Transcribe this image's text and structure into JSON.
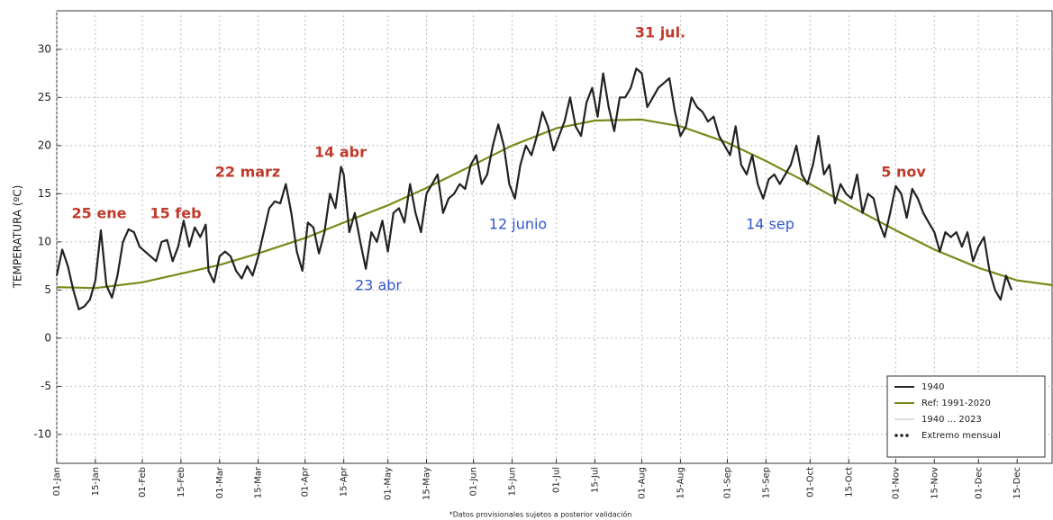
{
  "chart_data": {
    "type": "line",
    "ylabel": "TEMPERATURA (ºC)",
    "footnote": "*Datos provisionales sujetos a posterior validación",
    "xlim": [
      1,
      362
    ],
    "ylim": [
      -13,
      34
    ],
    "yticks": [
      -10,
      -5,
      0,
      5,
      10,
      15,
      20,
      25,
      30
    ],
    "xticks": [
      {
        "value": 1,
        "label": "01-Jan"
      },
      {
        "value": 15,
        "label": "15-Jan"
      },
      {
        "value": 32,
        "label": "01-Feb"
      },
      {
        "value": 46,
        "label": "15-Feb"
      },
      {
        "value": 60,
        "label": "01-Mar"
      },
      {
        "value": 74,
        "label": "15-Mar"
      },
      {
        "value": 91,
        "label": "01-Apr"
      },
      {
        "value": 105,
        "label": "15-Apr"
      },
      {
        "value": 121,
        "label": "01-May"
      },
      {
        "value": 135,
        "label": "15-May"
      },
      {
        "value": 152,
        "label": "01-Jun"
      },
      {
        "value": 166,
        "label": "15-Jun"
      },
      {
        "value": 182,
        "label": "01-Jul"
      },
      {
        "value": 196,
        "label": "15-Jul"
      },
      {
        "value": 213,
        "label": "01-Aug"
      },
      {
        "value": 227,
        "label": "15-Aug"
      },
      {
        "value": 244,
        "label": "01-Sep"
      },
      {
        "value": 258,
        "label": "15-Sep"
      },
      {
        "value": 274,
        "label": "01-Oct"
      },
      {
        "value": 288,
        "label": "15-Oct"
      },
      {
        "value": 305,
        "label": "01-Nov"
      },
      {
        "value": 319,
        "label": "15-Nov"
      },
      {
        "value": 335,
        "label": "01-Dec"
      },
      {
        "value": 349,
        "label": "15-Dec"
      }
    ],
    "grid": true,
    "legend": "lower right",
    "legend_extra": [
      {
        "label": "1940 ... 2023",
        "color": "#bbbbbb"
      },
      {
        "label": "Extremo mensual",
        "color": "#222222"
      }
    ],
    "annotations": [
      {
        "text": "25 ene",
        "color": "#c0392b"
      },
      {
        "text": "15 feb",
        "color": "#c0392b"
      },
      {
        "text": "22 marz",
        "color": "#c0392b"
      },
      {
        "text": "14 abr",
        "color": "#c0392b"
      },
      {
        "text": "23 abr",
        "color": "#3355cc"
      },
      {
        "text": "12 junio",
        "color": "#3355cc"
      },
      {
        "text": "31 jul.",
        "color": "#c0392b"
      },
      {
        "text": "14 sep",
        "color": "#3355cc"
      },
      {
        "text": "5 nov",
        "color": "#c0392b"
      }
    ],
    "series": [
      {
        "name": "1940",
        "color": "#222222",
        "width": 2.2,
        "x": [
          1,
          3,
          5,
          7,
          9,
          11,
          13,
          15,
          17,
          19,
          21,
          23,
          25,
          27,
          29,
          31,
          33,
          35,
          37,
          39,
          41,
          43,
          45,
          47,
          49,
          51,
          53,
          55,
          56,
          58,
          60,
          62,
          64,
          66,
          68,
          70,
          72,
          74,
          76,
          78,
          80,
          82,
          84,
          86,
          88,
          90,
          92,
          94,
          96,
          98,
          100,
          102,
          104,
          105,
          107,
          109,
          111,
          113,
          115,
          117,
          119,
          121,
          123,
          125,
          127,
          129,
          131,
          133,
          135,
          137,
          139,
          141,
          143,
          145,
          147,
          149,
          151,
          153,
          155,
          157,
          159,
          161,
          163,
          165,
          167,
          169,
          171,
          173,
          175,
          177,
          179,
          181,
          183,
          185,
          187,
          189,
          191,
          193,
          195,
          197,
          199,
          201,
          203,
          205,
          207,
          209,
          211,
          213,
          215,
          217,
          219,
          221,
          223,
          225,
          227,
          229,
          231,
          233,
          235,
          237,
          239,
          241,
          243,
          245,
          247,
          249,
          251,
          253,
          255,
          257,
          259,
          261,
          263,
          265,
          267,
          269,
          271,
          273,
          275,
          277,
          279,
          281,
          283,
          285,
          287,
          289,
          291,
          293,
          295,
          297,
          299,
          301,
          303,
          305,
          307,
          309,
          311,
          313,
          315,
          317,
          319,
          321,
          323,
          325,
          327,
          329,
          331,
          333,
          335,
          337,
          339,
          341,
          343,
          345,
          347
        ],
        "values": [
          6.5,
          9.2,
          7.5,
          5,
          3,
          3.3,
          4,
          6,
          11.2,
          5.5,
          4.2,
          6.5,
          10,
          11.3,
          11,
          9.5,
          9,
          8.5,
          8,
          10,
          10.2,
          8,
          9.5,
          12.2,
          9.5,
          11.5,
          10.5,
          11.8,
          7,
          5.8,
          8.5,
          9,
          8.5,
          7,
          6.2,
          7.5,
          6.5,
          8.5,
          11,
          13.5,
          14.2,
          14,
          16,
          13,
          9,
          7,
          12,
          11.5,
          8.8,
          11,
          15,
          13.5,
          17.8,
          17,
          11,
          13,
          10,
          7.2,
          11,
          10,
          12.2,
          9,
          13,
          13.5,
          12,
          16,
          13,
          11,
          15,
          16,
          17,
          13,
          14.5,
          15,
          16,
          15.5,
          18,
          19,
          16,
          17,
          20,
          22.2,
          20,
          16,
          14.5,
          18,
          20,
          19,
          21,
          23.5,
          22,
          19.5,
          21,
          22.5,
          25,
          22,
          21,
          24.5,
          26,
          23,
          27.5,
          24,
          21.5,
          25,
          25,
          26,
          28,
          27.5,
          24,
          25,
          26,
          26.5,
          27,
          23.5,
          21,
          22,
          25,
          24,
          23.5,
          22.5,
          23,
          21,
          20,
          19,
          22,
          18,
          17,
          19,
          16,
          14.5,
          16.5,
          17,
          16,
          17,
          18,
          20,
          17,
          16,
          18,
          21,
          17,
          18,
          14,
          16,
          15,
          14.5,
          17,
          13,
          15,
          14.5,
          12,
          10.5,
          13,
          15.8,
          15,
          12.5,
          15.5,
          14.5,
          13,
          12,
          11,
          9,
          11,
          10.5,
          11,
          9.5,
          11,
          8,
          9.5,
          10.5,
          7,
          5,
          4,
          6.5,
          5
        ]
      },
      {
        "name": "Ref: 1991-2020",
        "color": "#7a8a1a",
        "width": 2.2,
        "x": [
          1,
          15,
          32,
          46,
          60,
          74,
          91,
          105,
          121,
          135,
          152,
          166,
          182,
          196,
          213,
          227,
          244,
          258,
          274,
          288,
          305,
          319,
          335,
          349,
          362
        ],
        "values": [
          5.3,
          5.2,
          5.8,
          6.7,
          7.6,
          8.8,
          10.4,
          12,
          13.8,
          15.6,
          18,
          20,
          21.8,
          22.6,
          22.7,
          22,
          20.3,
          18.4,
          16,
          13.8,
          11.2,
          9.2,
          7.3,
          6,
          5.5
        ]
      }
    ]
  }
}
